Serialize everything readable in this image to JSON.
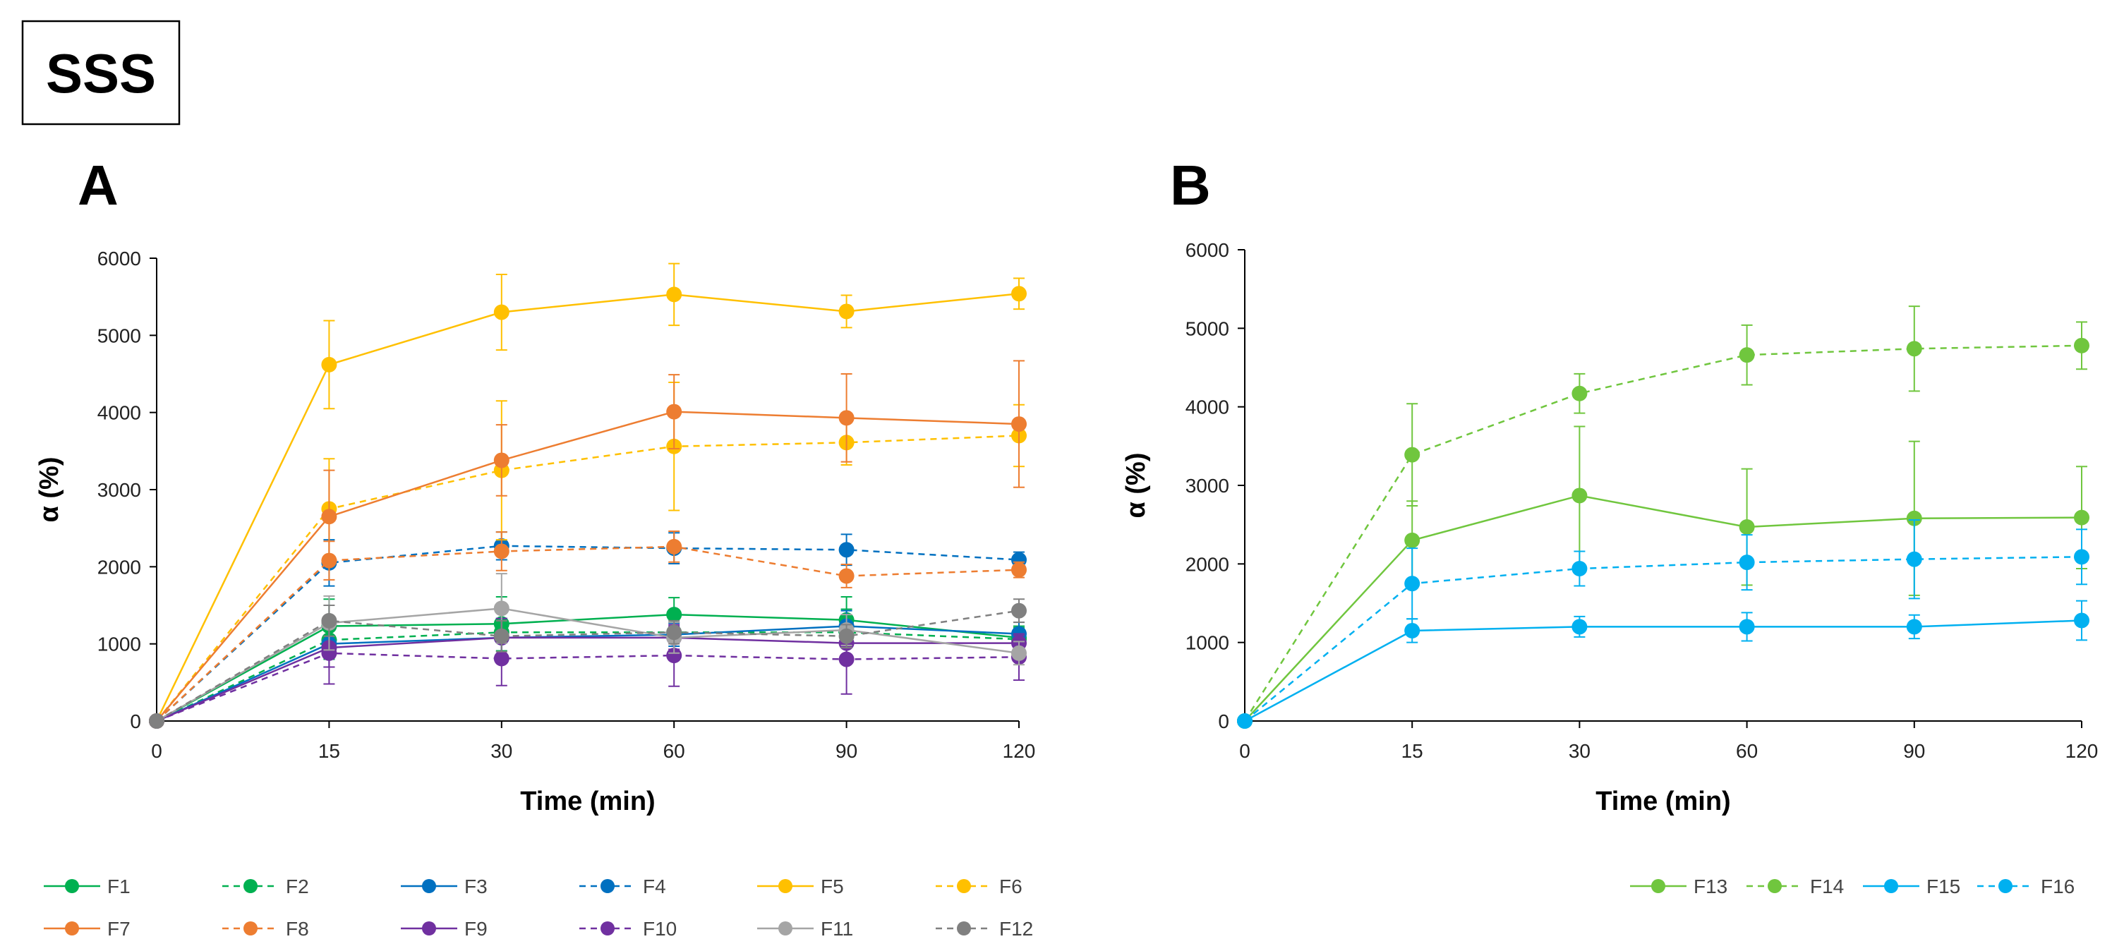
{
  "header": {
    "title": "SSS"
  },
  "panels": [
    {
      "letter": "A"
    },
    {
      "letter": "B"
    }
  ],
  "chart_data": [
    {
      "panel": "A",
      "type": "line",
      "xlabel": "Time (min)",
      "ylabel": "α (%)",
      "x": [
        0,
        15,
        30,
        60,
        90,
        120
      ],
      "xticks": [
        "0",
        "15",
        "30",
        "60",
        "90",
        "120"
      ],
      "ylim": [
        0,
        6000
      ],
      "yticks": [
        0,
        1000,
        2000,
        3000,
        4000,
        5000,
        6000
      ],
      "legend_position": "bottom",
      "series": [
        {
          "name": "F1",
          "color": "#00B050",
          "dashed": false,
          "values": [
            0,
            1230,
            1260,
            1380,
            1310,
            1080
          ],
          "errors": [
            0,
            350,
            350,
            220,
            300,
            150
          ]
        },
        {
          "name": "F2",
          "color": "#00B050",
          "dashed": true,
          "values": [
            0,
            1050,
            1150,
            1150,
            1150,
            1060
          ],
          "errors": [
            0,
            250,
            300,
            250,
            300,
            150
          ]
        },
        {
          "name": "F3",
          "color": "#0070C0",
          "dashed": false,
          "values": [
            0,
            1000,
            1080,
            1120,
            1230,
            1130
          ],
          "errors": [
            0,
            300,
            250,
            150,
            200,
            150
          ]
        },
        {
          "name": "F4",
          "color": "#0070C0",
          "dashed": true,
          "values": [
            0,
            2050,
            2270,
            2240,
            2220,
            2090
          ],
          "errors": [
            0,
            300,
            180,
            200,
            200,
            100
          ]
        },
        {
          "name": "F5",
          "color": "#FFC000",
          "dashed": false,
          "values": [
            0,
            4620,
            5300,
            5530,
            5310,
            5540
          ],
          "errors": [
            0,
            570,
            490,
            400,
            210,
            200
          ]
        },
        {
          "name": "F6",
          "color": "#FFC000",
          "dashed": true,
          "values": [
            0,
            2750,
            3250,
            3560,
            3610,
            3700
          ],
          "errors": [
            0,
            650,
            900,
            830,
            290,
            400
          ]
        },
        {
          "name": "F7",
          "color": "#ED7D31",
          "dashed": false,
          "values": [
            0,
            2650,
            3380,
            4010,
            3930,
            3850
          ],
          "errors": [
            0,
            600,
            460,
            480,
            570,
            820
          ]
        },
        {
          "name": "F8",
          "color": "#ED7D31",
          "dashed": true,
          "values": [
            0,
            2080,
            2200,
            2260,
            1880,
            1960
          ],
          "errors": [
            0,
            250,
            250,
            200,
            150,
            100
          ]
        },
        {
          "name": "F9",
          "color": "#7030A0",
          "dashed": false,
          "values": [
            0,
            950,
            1080,
            1080,
            1010,
            1010
          ],
          "errors": [
            0,
            250,
            250,
            150,
            200,
            100
          ]
        },
        {
          "name": "F10",
          "color": "#7030A0",
          "dashed": true,
          "values": [
            0,
            880,
            810,
            850,
            800,
            830
          ],
          "errors": [
            0,
            400,
            350,
            400,
            450,
            300
          ]
        },
        {
          "name": "F11",
          "color": "#A5A5A5",
          "dashed": false,
          "values": [
            0,
            1270,
            1460,
            1080,
            1180,
            880
          ],
          "errors": [
            0,
            350,
            450,
            200,
            200,
            150
          ]
        },
        {
          "name": "F12",
          "color": "#808080",
          "dashed": true,
          "values": [
            0,
            1300,
            1100,
            1150,
            1100,
            1430
          ],
          "errors": [
            0,
            200,
            200,
            150,
            150,
            150
          ]
        }
      ]
    },
    {
      "panel": "B",
      "type": "line",
      "xlabel": "Time (min)",
      "ylabel": "α (%)",
      "x": [
        0,
        15,
        30,
        60,
        90,
        120
      ],
      "xticks": [
        "0",
        "15",
        "30",
        "60",
        "90",
        "120"
      ],
      "ylim": [
        0,
        6000
      ],
      "yticks": [
        0,
        1000,
        2000,
        3000,
        4000,
        5000,
        6000
      ],
      "legend_position": "bottom",
      "series": [
        {
          "name": "F13",
          "color": "#70C63E",
          "dashed": false,
          "values": [
            0,
            2300,
            2870,
            2470,
            2580,
            2590
          ],
          "errors": [
            0,
            500,
            880,
            740,
            980,
            650
          ]
        },
        {
          "name": "F14",
          "color": "#70C63E",
          "dashed": true,
          "values": [
            0,
            3390,
            4170,
            4660,
            4740,
            4780
          ],
          "errors": [
            0,
            650,
            250,
            380,
            540,
            300
          ]
        },
        {
          "name": "F15",
          "color": "#00B0F0",
          "dashed": false,
          "values": [
            0,
            1150,
            1200,
            1200,
            1200,
            1280
          ],
          "errors": [
            0,
            150,
            130,
            180,
            150,
            250
          ]
        },
        {
          "name": "F16",
          "color": "#00B0F0",
          "dashed": true,
          "values": [
            0,
            1750,
            1940,
            2020,
            2060,
            2090
          ],
          "errors": [
            0,
            450,
            220,
            350,
            500,
            350
          ]
        }
      ]
    }
  ]
}
